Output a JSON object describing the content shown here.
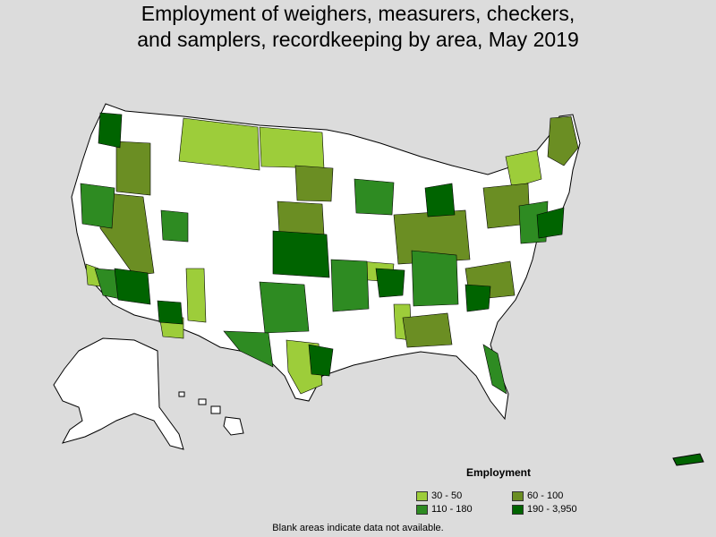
{
  "title": {
    "line1": "Employment of weighers, measurers, checkers,",
    "line2": "and samplers, recordkeeping by area, May 2019"
  },
  "legend": {
    "title": "Employment",
    "items": [
      {
        "label": "30 - 50",
        "color": "#9dcd3a"
      },
      {
        "label": "60 - 100",
        "color": "#6b8e23"
      },
      {
        "label": "110 - 180",
        "color": "#2e8b22"
      },
      {
        "label": "190 - 3,950",
        "color": "#006400"
      }
    ]
  },
  "footnote": "Blank areas indicate data not available.",
  "colors": {
    "background": "#dcdcdc",
    "no_data": "#ffffff",
    "border": "#000000"
  }
}
